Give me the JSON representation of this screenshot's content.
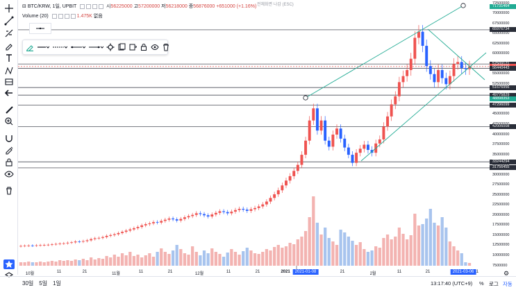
{
  "legend": {
    "symbol": "BTC/KRW, 1일, UPBIT",
    "open_label": "시",
    "open": "56225000",
    "high_label": "고",
    "high": "57200000",
    "low_label": "저",
    "low": "56218000",
    "close_label": "종",
    "close": "56876000",
    "change": "+651000 (+1.16%)",
    "volume_label": "Volume (20)",
    "volume_value": "1.475K",
    "volume_na": "없음"
  },
  "hint": "전체화면 나감 (ESC)",
  "colors": {
    "up": "#ef5350",
    "down": "#2962ff",
    "vol_up": "#f3b3b1",
    "vol_down": "#a8c4ee",
    "trendline": "#22ab94",
    "hline": "#2a2e39",
    "accent": "#2962ff"
  },
  "left_toolbar": {
    "icons": [
      "crosshair-icon",
      "trendline-icon",
      "fib-icon",
      "brush-icon",
      "text-icon",
      "pattern-icon",
      "measure-icon",
      "arrow-icon",
      "ruler-icon",
      "zoom-icon",
      "magnet-icon",
      "lock-drawing-icon",
      "lock-icon",
      "eye-icon",
      "trash-icon"
    ]
  },
  "draw_toolbar": {
    "icons": [
      "pencil-icon",
      "line-width-icon",
      "line-style-icon",
      "line-end-icon",
      "settings-icon",
      "layers-icon",
      "clone-icon",
      "lock-icon",
      "eye-icon",
      "trash-icon"
    ]
  },
  "price_axis": {
    "labels": [
      "72500000",
      "70000000",
      "67500000",
      "65000000",
      "62500000",
      "60000000",
      "55000000",
      "52500000",
      "45000000",
      "42500000",
      "40000000",
      "37500000",
      "35000000",
      "32500000",
      "30000000",
      "27500000",
      "25000000",
      "22500000",
      "20000000",
      "17500000",
      "15000000",
      "12500000",
      "10000000",
      "7500000"
    ],
    "boxed": [
      {
        "text": "71731464",
        "color": "#22ab94"
      },
      {
        "text": "65976734",
        "color": "#2a2e39"
      },
      {
        "text": "57509171",
        "color": "#2a2e39"
      },
      {
        "text": "56876000",
        "color": "#ef5350"
      },
      {
        "text": "56440443",
        "color": "#2a2e39"
      },
      {
        "text": "51676956",
        "color": "#2a2e39"
      },
      {
        "text": "49775829",
        "color": "#2a2e39"
      },
      {
        "text": "48898353",
        "color": "#22ab94"
      },
      {
        "text": "47296099",
        "color": "#2a2e39"
      },
      {
        "text": "42006008",
        "color": "#2a2e39"
      },
      {
        "text": "33244294",
        "color": "#2a2e39"
      },
      {
        "text": "31756455",
        "color": "#2a2e39"
      }
    ]
  },
  "time_axis": {
    "labels": [
      "10월",
      "11",
      "21",
      "11월",
      "11",
      "21",
      "12월",
      "11",
      "21",
      "2021",
      "21",
      "2월",
      "11",
      "21",
      "11"
    ],
    "boxed": [
      "2021-01-08",
      "2021-03-06"
    ]
  },
  "chart_data": {
    "type": "candlestick",
    "series": [
      {
        "name": "BTC/KRW",
        "note": "daily OHLC, approx"
      }
    ],
    "x_range": [
      "2020-09-25",
      "2021-03-06"
    ],
    "ylim": [
      7500000,
      72500000
    ],
    "closes": [
      12400000,
      12450000,
      12500000,
      12480000,
      12550000,
      12600000,
      12650000,
      12700000,
      12800000,
      12900000,
      13000000,
      13050000,
      13200000,
      13300000,
      13500000,
      13450000,
      13600000,
      13800000,
      14100000,
      14300000,
      14400000,
      14600000,
      14900000,
      15100000,
      15300000,
      15600000,
      15900000,
      16200000,
      16500000,
      16800000,
      17100000,
      17500000,
      17800000,
      18000000,
      18300000,
      18200000,
      18600000,
      18900000,
      19200000,
      19000000,
      18700000,
      19100000,
      19500000,
      19800000,
      20100000,
      20500000,
      20300000,
      20000000,
      19700000,
      20200000,
      20600000,
      21000000,
      20800000,
      20500000,
      20900000,
      21300000,
      21600000,
      21400000,
      21100000,
      21500000,
      21800000,
      22200000,
      22700000,
      23400000,
      24300000,
      25200000,
      26200000,
      27400000,
      28600000,
      29700000,
      31000000,
      32500000,
      35000000,
      38500000,
      43500000,
      46500000,
      41000000,
      43500000,
      38500000,
      37000000,
      40000000,
      41500000,
      39000000,
      36800000,
      35000000,
      33000000,
      35500000,
      36500000,
      37500000,
      36200000,
      35500000,
      37800000,
      38800000,
      42000000,
      44500000,
      47500000,
      49500000,
      53000000,
      54500000,
      56000000,
      58800000,
      64000000,
      65500000,
      62000000,
      57000000,
      55000000,
      53000000,
      56000000,
      54000000,
      52500000,
      54500000,
      57500000,
      58000000,
      56500000,
      56225000,
      56876000
    ],
    "volumes_relative": [
      0.05,
      0.05,
      0.06,
      0.05,
      0.05,
      0.06,
      0.05,
      0.06,
      0.07,
      0.06,
      0.08,
      0.07,
      0.08,
      0.07,
      0.09,
      0.08,
      0.1,
      0.08,
      0.12,
      0.09,
      0.11,
      0.1,
      0.14,
      0.12,
      0.16,
      0.13,
      0.18,
      0.15,
      0.2,
      0.14,
      0.16,
      0.12,
      0.15,
      0.18,
      0.13,
      0.2,
      0.25,
      0.2,
      0.17,
      0.22,
      0.3,
      0.24,
      0.18,
      0.16,
      0.28,
      0.2,
      0.15,
      0.22,
      0.18,
      0.25,
      0.2,
      0.17,
      0.13,
      0.19,
      0.24,
      0.2,
      0.16,
      0.21,
      0.26,
      0.22,
      0.18,
      0.17,
      0.2,
      0.24,
      0.22,
      0.27,
      0.3,
      0.26,
      0.28,
      0.33,
      0.31,
      0.38,
      0.42,
      0.5,
      0.7,
      1.0,
      0.62,
      0.45,
      0.55,
      0.4,
      0.35,
      0.3,
      0.52,
      0.48,
      0.42,
      0.36,
      0.3,
      0.34,
      0.24,
      0.2,
      0.22,
      0.28,
      0.26,
      0.4,
      0.45,
      0.38,
      0.42,
      0.55,
      0.46,
      0.38,
      0.44,
      0.75,
      0.58,
      0.6,
      0.68,
      0.82,
      0.62,
      0.58,
      0.7,
      0.55,
      0.35,
      0.28,
      0.22,
      0.18,
      0.05,
      0.04
    ]
  },
  "bottom_bar": {
    "ranges": [
      "30일",
      "5일",
      "1일"
    ],
    "clock": "13:17:40 (UTC+9)",
    "percent": "%",
    "log": "로그",
    "auto": "자동"
  }
}
